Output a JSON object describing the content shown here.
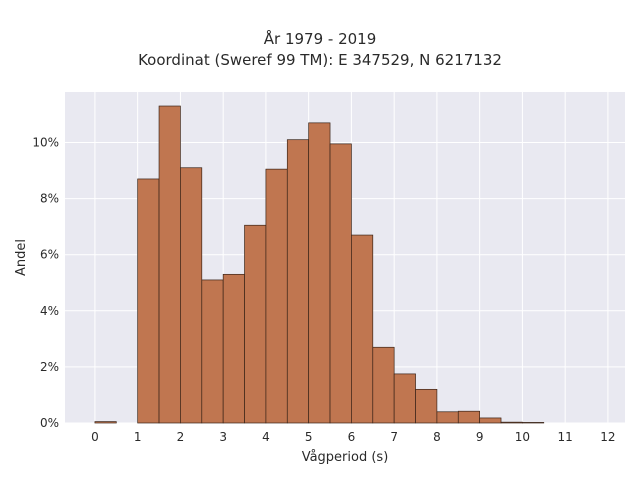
{
  "chart_data": {
    "type": "bar",
    "title_line1": "År 1979 - 2019",
    "title_line2": "Koordinat (Sweref 99 TM): E 347529, N 6217132",
    "xlabel": "Vågperiod (s)",
    "ylabel": "Andel",
    "xlim": [
      -0.7,
      12.4
    ],
    "ylim": [
      0,
      11.8
    ],
    "x_ticks": [
      0,
      1,
      2,
      3,
      4,
      5,
      6,
      7,
      8,
      9,
      10,
      11,
      12
    ],
    "x_tick_labels": [
      "0",
      "1",
      "2",
      "3",
      "4",
      "5",
      "6",
      "7",
      "8",
      "9",
      "10",
      "11",
      "12"
    ],
    "y_ticks": [
      0,
      2,
      4,
      6,
      8,
      10
    ],
    "y_tick_labels": [
      "0%",
      "2%",
      "4%",
      "6%",
      "8%",
      "10%"
    ],
    "bin_width": 0.5,
    "bins": [
      {
        "start": 0.0,
        "value": 0.05
      },
      {
        "start": 1.0,
        "value": 8.7
      },
      {
        "start": 1.5,
        "value": 11.3
      },
      {
        "start": 2.0,
        "value": 9.1
      },
      {
        "start": 2.5,
        "value": 5.1
      },
      {
        "start": 3.0,
        "value": 5.3
      },
      {
        "start": 3.5,
        "value": 7.05
      },
      {
        "start": 4.0,
        "value": 9.05
      },
      {
        "start": 4.5,
        "value": 10.1
      },
      {
        "start": 5.0,
        "value": 10.7
      },
      {
        "start": 5.5,
        "value": 9.95
      },
      {
        "start": 6.0,
        "value": 6.7
      },
      {
        "start": 6.5,
        "value": 2.7
      },
      {
        "start": 7.0,
        "value": 1.75
      },
      {
        "start": 7.5,
        "value": 1.2
      },
      {
        "start": 8.0,
        "value": 0.4
      },
      {
        "start": 8.5,
        "value": 0.42
      },
      {
        "start": 9.0,
        "value": 0.18
      },
      {
        "start": 9.5,
        "value": 0.03
      },
      {
        "start": 10.0,
        "value": 0.02
      }
    ],
    "grid": true,
    "colors": {
      "bar_fill": "#C07650",
      "bar_edge": "#3a2418",
      "plot_background": "#E9E9F1",
      "grid": "#ffffff"
    }
  }
}
